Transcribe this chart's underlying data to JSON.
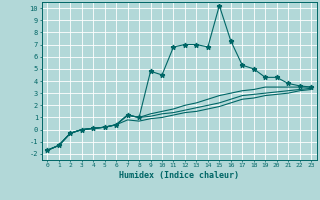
{
  "xlabel": "Humidex (Indice chaleur)",
  "bg_color": "#b2d8d8",
  "grid_color": "#ffffff",
  "line_color": "#006666",
  "xlim": [
    -0.5,
    23.5
  ],
  "ylim": [
    -2.5,
    10.5
  ],
  "xticks": [
    0,
    1,
    2,
    3,
    4,
    5,
    6,
    7,
    8,
    9,
    10,
    11,
    12,
    13,
    14,
    15,
    16,
    17,
    18,
    19,
    20,
    21,
    22,
    23
  ],
  "yticks": [
    -2,
    -1,
    0,
    1,
    2,
    3,
    4,
    5,
    6,
    7,
    8,
    9,
    10
  ],
  "line1_x": [
    0,
    1,
    2,
    3,
    4,
    5,
    6,
    7,
    8,
    9,
    10,
    11,
    12,
    13,
    14,
    15,
    16,
    17,
    18,
    19,
    20,
    21,
    22,
    23
  ],
  "line1_y": [
    -1.7,
    -1.3,
    -0.3,
    0.0,
    0.1,
    0.2,
    0.4,
    1.2,
    1.0,
    4.8,
    4.5,
    6.8,
    7.0,
    7.0,
    6.8,
    10.2,
    7.3,
    5.3,
    5.0,
    4.3,
    4.3,
    3.8,
    3.6,
    3.5
  ],
  "line2_x": [
    0,
    1,
    2,
    3,
    4,
    5,
    6,
    7,
    8,
    9,
    10,
    11,
    12,
    13,
    14,
    15,
    16,
    17,
    18,
    19,
    20,
    21,
    22,
    23
  ],
  "line2_y": [
    -1.7,
    -1.3,
    -0.3,
    0.0,
    0.1,
    0.2,
    0.4,
    1.2,
    1.0,
    1.3,
    1.5,
    1.7,
    2.0,
    2.2,
    2.5,
    2.8,
    3.0,
    3.2,
    3.3,
    3.5,
    3.5,
    3.5,
    3.5,
    3.5
  ],
  "line3_x": [
    0,
    1,
    2,
    3,
    4,
    5,
    6,
    7,
    8,
    9,
    10,
    11,
    12,
    13,
    14,
    15,
    16,
    17,
    18,
    19,
    20,
    21,
    22,
    23
  ],
  "line3_y": [
    -1.7,
    -1.3,
    -0.3,
    0.0,
    0.1,
    0.2,
    0.4,
    1.2,
    1.0,
    1.1,
    1.3,
    1.4,
    1.6,
    1.8,
    2.0,
    2.2,
    2.5,
    2.8,
    2.9,
    3.0,
    3.1,
    3.2,
    3.3,
    3.4
  ],
  "line4_x": [
    0,
    1,
    2,
    3,
    4,
    5,
    6,
    7,
    8,
    9,
    10,
    11,
    12,
    13,
    14,
    15,
    16,
    17,
    18,
    19,
    20,
    21,
    22,
    23
  ],
  "line4_y": [
    -1.7,
    -1.3,
    -0.3,
    0.0,
    0.1,
    0.2,
    0.4,
    0.8,
    0.7,
    0.9,
    1.0,
    1.2,
    1.4,
    1.5,
    1.7,
    1.9,
    2.2,
    2.5,
    2.6,
    2.8,
    2.9,
    3.0,
    3.2,
    3.3
  ]
}
